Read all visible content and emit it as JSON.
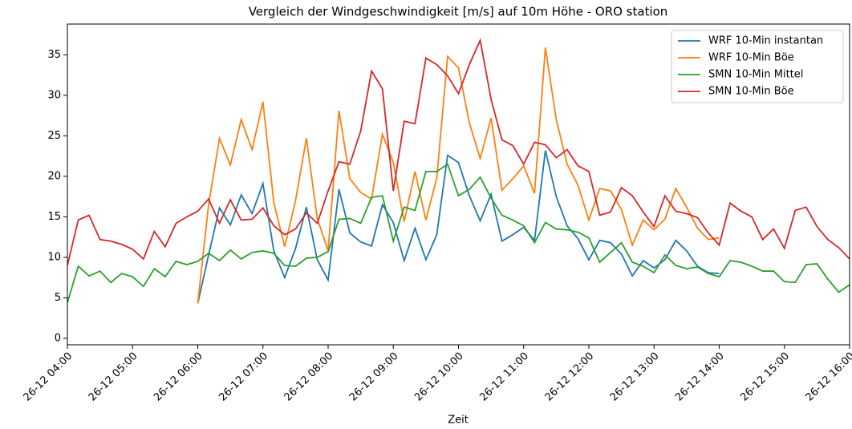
{
  "chart_data": {
    "type": "line",
    "title": "Vergleich der Windgeschwindigkeit [m/s] auf 10m Höhe - ORO station",
    "x_label": "Zeit",
    "x": [
      "26-12 04:00",
      "26-12 04:10",
      "26-12 04:20",
      "26-12 04:30",
      "26-12 04:40",
      "26-12 04:50",
      "26-12 05:00",
      "26-12 05:10",
      "26-12 05:20",
      "26-12 05:30",
      "26-12 05:40",
      "26-12 05:50",
      "26-12 06:00",
      "26-12 06:10",
      "26-12 06:20",
      "26-12 06:30",
      "26-12 06:40",
      "26-12 06:50",
      "26-12 07:00",
      "26-12 07:10",
      "26-12 07:20",
      "26-12 07:30",
      "26-12 07:40",
      "26-12 07:50",
      "26-12 08:00",
      "26-12 08:10",
      "26-12 08:20",
      "26-12 08:30",
      "26-12 08:40",
      "26-12 08:50",
      "26-12 09:00",
      "26-12 09:10",
      "26-12 09:20",
      "26-12 09:30",
      "26-12 09:40",
      "26-12 09:50",
      "26-12 10:00",
      "26-12 10:10",
      "26-12 10:20",
      "26-12 10:30",
      "26-12 10:40",
      "26-12 10:50",
      "26-12 11:00",
      "26-12 11:10",
      "26-12 11:20",
      "26-12 11:30",
      "26-12 11:40",
      "26-12 11:50",
      "26-12 12:00",
      "26-12 12:10",
      "26-12 12:20",
      "26-12 12:30",
      "26-12 12:40",
      "26-12 12:50",
      "26-12 13:00",
      "26-12 13:10",
      "26-12 13:20",
      "26-12 13:30",
      "26-12 13:40",
      "26-12 13:50",
      "26-12 14:00",
      "26-12 14:10",
      "26-12 14:20",
      "26-12 14:30",
      "26-12 14:40",
      "26-12 14:50",
      "26-12 15:00",
      "26-12 15:10",
      "26-12 15:20",
      "26-12 15:30",
      "26-12 15:40",
      "26-12 15:50",
      "26-12 16:00"
    ],
    "xlim": [
      "26-12 04:00",
      "26-12 16:00"
    ],
    "xticks": [
      "26-12 04:00",
      "26-12 05:00",
      "26-12 06:00",
      "26-12 07:00",
      "26-12 08:00",
      "26-12 09:00",
      "26-12 10:00",
      "26-12 11:00",
      "26-12 12:00",
      "26-12 13:00",
      "26-12 14:00",
      "26-12 15:00",
      "26-12 16:00"
    ],
    "ylim": [
      -0.8,
      38.8
    ],
    "yticks": [
      0,
      5,
      10,
      15,
      20,
      25,
      30,
      35
    ],
    "legend": "upper right",
    "series": [
      {
        "name": "WRF 10-Min instantan",
        "color": "#1f77b4",
        "values": [
          null,
          null,
          null,
          null,
          null,
          null,
          null,
          null,
          null,
          null,
          null,
          null,
          4.3,
          10.3,
          16.1,
          14.0,
          17.7,
          15.4,
          19.1,
          10.8,
          7.5,
          11.1,
          16.2,
          9.7,
          7.2,
          18.4,
          13.0,
          11.9,
          11.4,
          16.5,
          14.3,
          9.6,
          13.6,
          9.7,
          12.8,
          22.6,
          21.7,
          17.6,
          14.5,
          17.8,
          12.0,
          12.8,
          13.7,
          12.1,
          23.2,
          17.5,
          13.9,
          12.3,
          9.7,
          12.1,
          11.8,
          10.4,
          7.7,
          9.6,
          8.7,
          9.7,
          12.1,
          10.8,
          8.9,
          8.1,
          8.0,
          null,
          null,
          null,
          null,
          null,
          null,
          null,
          null,
          null,
          null,
          null,
          null
        ]
      },
      {
        "name": "WRF 10-Min Böe",
        "color": "#ff7f0e",
        "values": [
          null,
          null,
          null,
          null,
          null,
          null,
          null,
          null,
          null,
          null,
          null,
          null,
          4.3,
          16.5,
          24.7,
          21.4,
          27.0,
          23.3,
          29.2,
          16.8,
          11.3,
          17.0,
          24.7,
          14.8,
          10.8,
          28.1,
          19.7,
          18.0,
          17.2,
          25.2,
          21.7,
          14.4,
          20.6,
          14.6,
          19.8,
          34.8,
          33.4,
          26.6,
          22.2,
          27.2,
          18.3,
          19.7,
          21.3,
          17.9,
          35.9,
          27.0,
          21.5,
          18.9,
          14.6,
          18.5,
          18.2,
          15.9,
          11.5,
          14.6,
          13.4,
          14.7,
          18.5,
          16.2,
          13.6,
          12.2,
          12.4,
          null,
          null,
          null,
          null,
          null,
          null,
          null,
          null,
          null,
          null,
          null,
          null
        ]
      },
      {
        "name": "SMN 10-Min Mittel",
        "color": "#2ca02c",
        "values": [
          4.4,
          8.9,
          7.7,
          8.3,
          6.9,
          8.0,
          7.6,
          6.4,
          8.6,
          7.6,
          9.5,
          9.1,
          9.5,
          10.5,
          9.6,
          10.9,
          9.8,
          10.6,
          10.8,
          10.5,
          9.0,
          8.9,
          9.9,
          10.0,
          10.7,
          14.7,
          14.8,
          14.2,
          17.4,
          17.6,
          12.0,
          16.2,
          15.8,
          20.6,
          20.6,
          21.5,
          17.6,
          18.4,
          19.9,
          17.3,
          15.2,
          14.6,
          13.9,
          11.8,
          14.3,
          13.5,
          13.4,
          13.1,
          12.4,
          9.4,
          10.6,
          11.8,
          9.4,
          8.9,
          8.1,
          10.3,
          9.0,
          8.6,
          8.8,
          8.0,
          7.6,
          9.6,
          9.4,
          8.9,
          8.3,
          8.3,
          7.0,
          6.9,
          9.1,
          9.2,
          7.3,
          5.7,
          6.6
        ]
      },
      {
        "name": "SMN 10-Min Böe",
        "color": "#d62728",
        "values": [
          9.0,
          14.6,
          15.2,
          12.2,
          12.0,
          11.6,
          11.0,
          9.8,
          13.2,
          11.3,
          14.2,
          15.0,
          15.7,
          17.2,
          14.2,
          17.1,
          14.6,
          14.7,
          16.1,
          13.9,
          12.8,
          13.5,
          15.5,
          14.2,
          18.2,
          21.8,
          21.5,
          25.6,
          33.0,
          30.8,
          18.2,
          26.8,
          26.5,
          34.6,
          33.8,
          32.4,
          30.2,
          33.8,
          36.8,
          29.5,
          24.5,
          23.8,
          21.5,
          24.2,
          23.9,
          22.3,
          23.3,
          21.3,
          20.6,
          15.2,
          15.6,
          18.6,
          17.6,
          15.6,
          13.8,
          17.6,
          15.7,
          15.4,
          14.9,
          13.0,
          11.5,
          16.7,
          15.7,
          15.0,
          12.2,
          13.5,
          11.1,
          15.8,
          16.2,
          13.8,
          12.2,
          11.2,
          9.8
        ]
      }
    ]
  }
}
